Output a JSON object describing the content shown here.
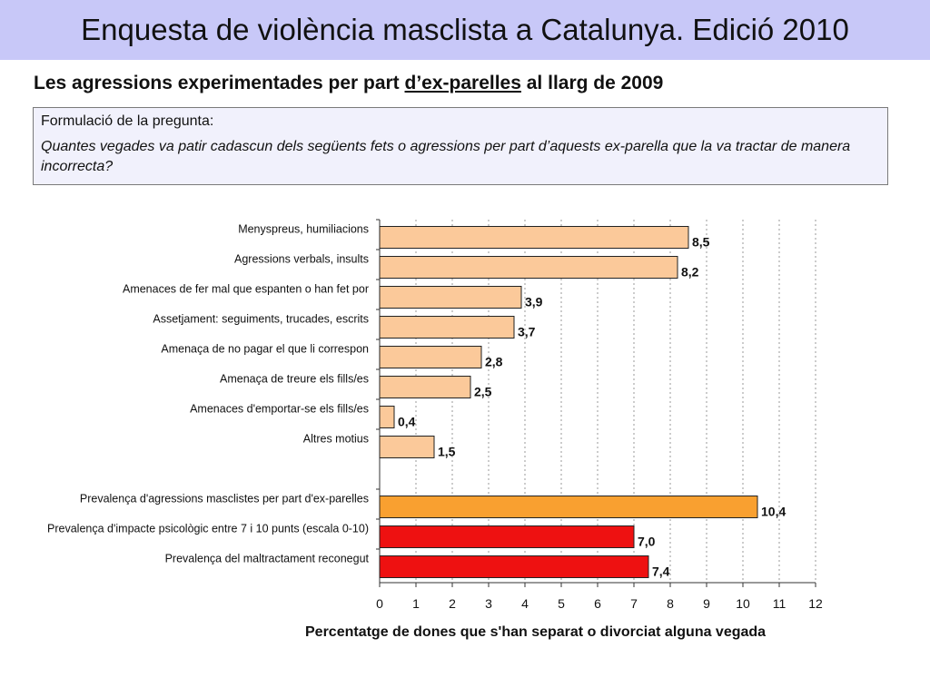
{
  "header": {
    "title": "Enquesta de violència masclista a Catalunya. Edició 2010"
  },
  "subtitle": {
    "before": "Les agressions experimentades per part ",
    "underlined": "d’ex-parelles",
    "after": " al llarg de 2009"
  },
  "question": {
    "label": "Formulació de la pregunta:",
    "text": "Quantes vegades va patir cadascun dels següents fets o agressions per part d’aquests ex-parella que la va tractar de manera incorrecta?"
  },
  "chart_data": {
    "type": "bar",
    "orientation": "horizontal",
    "xlabel": "Percentatge de dones que s'han separat o divorciat alguna vegada",
    "xlim": [
      0,
      12
    ],
    "xticks": [
      "0",
      "1",
      "2",
      "3",
      "4",
      "5",
      "6",
      "7",
      "8",
      "9",
      "10",
      "11",
      "12"
    ],
    "grid": "vertical dashed",
    "colors": {
      "light": "#fbc99a",
      "orange": "#f9a030",
      "red": "#ee1111"
    },
    "groups": [
      {
        "bars": [
          {
            "label": "Menyspreus, humiliacions",
            "value": 8.5,
            "value_label": "8,5",
            "color": "light"
          },
          {
            "label": "Agressions verbals, insults",
            "value": 8.2,
            "value_label": "8,2",
            "color": "light"
          },
          {
            "label": "Amenaces de fer mal que espanten o han fet por",
            "value": 3.9,
            "value_label": "3,9",
            "color": "light"
          },
          {
            "label": "Assetjament: seguiments, trucades, escrits",
            "value": 3.7,
            "value_label": "3,7",
            "color": "light"
          },
          {
            "label": "Amenaça de no pagar el que li correspon",
            "value": 2.8,
            "value_label": "2,8",
            "color": "light"
          },
          {
            "label": "Amenaça de treure els fills/es",
            "value": 2.5,
            "value_label": "2,5",
            "color": "light"
          },
          {
            "label": "Amenaces d'emportar-se els fills/es",
            "value": 0.4,
            "value_label": "0,4",
            "color": "light"
          },
          {
            "label": "Altres motius",
            "value": 1.5,
            "value_label": "1,5",
            "color": "light"
          }
        ]
      },
      {
        "bars": [
          {
            "label": "Prevalença d'agressions masclistes per part d'ex-parelles",
            "value": 10.4,
            "value_label": "10,4",
            "color": "orange"
          },
          {
            "label": "Prevalença d'impacte psicològic entre 7 i 10 punts (escala 0-10)",
            "value": 7.0,
            "value_label": "7,0",
            "color": "red"
          },
          {
            "label": "Prevalença del maltractament reconegut",
            "value": 7.4,
            "value_label": "7,4",
            "color": "red"
          }
        ]
      }
    ]
  }
}
